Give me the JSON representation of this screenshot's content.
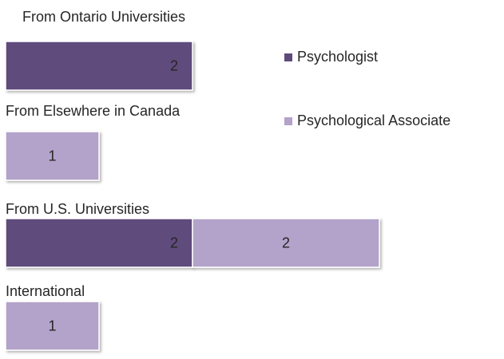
{
  "chart_data": {
    "type": "stacked-bar-horizontal",
    "categories": [
      "From Ontario Universities",
      "From Elsewhere in Canada",
      "From U.S. Universities",
      "International"
    ],
    "series": [
      {
        "name": "Psychologist",
        "color": "#5f4b7b",
        "values": [
          2,
          null,
          2,
          null
        ]
      },
      {
        "name": "Psychological Associate",
        "color": "#b3a2c9",
        "values": [
          null,
          1,
          2,
          1
        ]
      }
    ],
    "xlim": [
      0,
      5
    ],
    "legend": "right"
  }
}
